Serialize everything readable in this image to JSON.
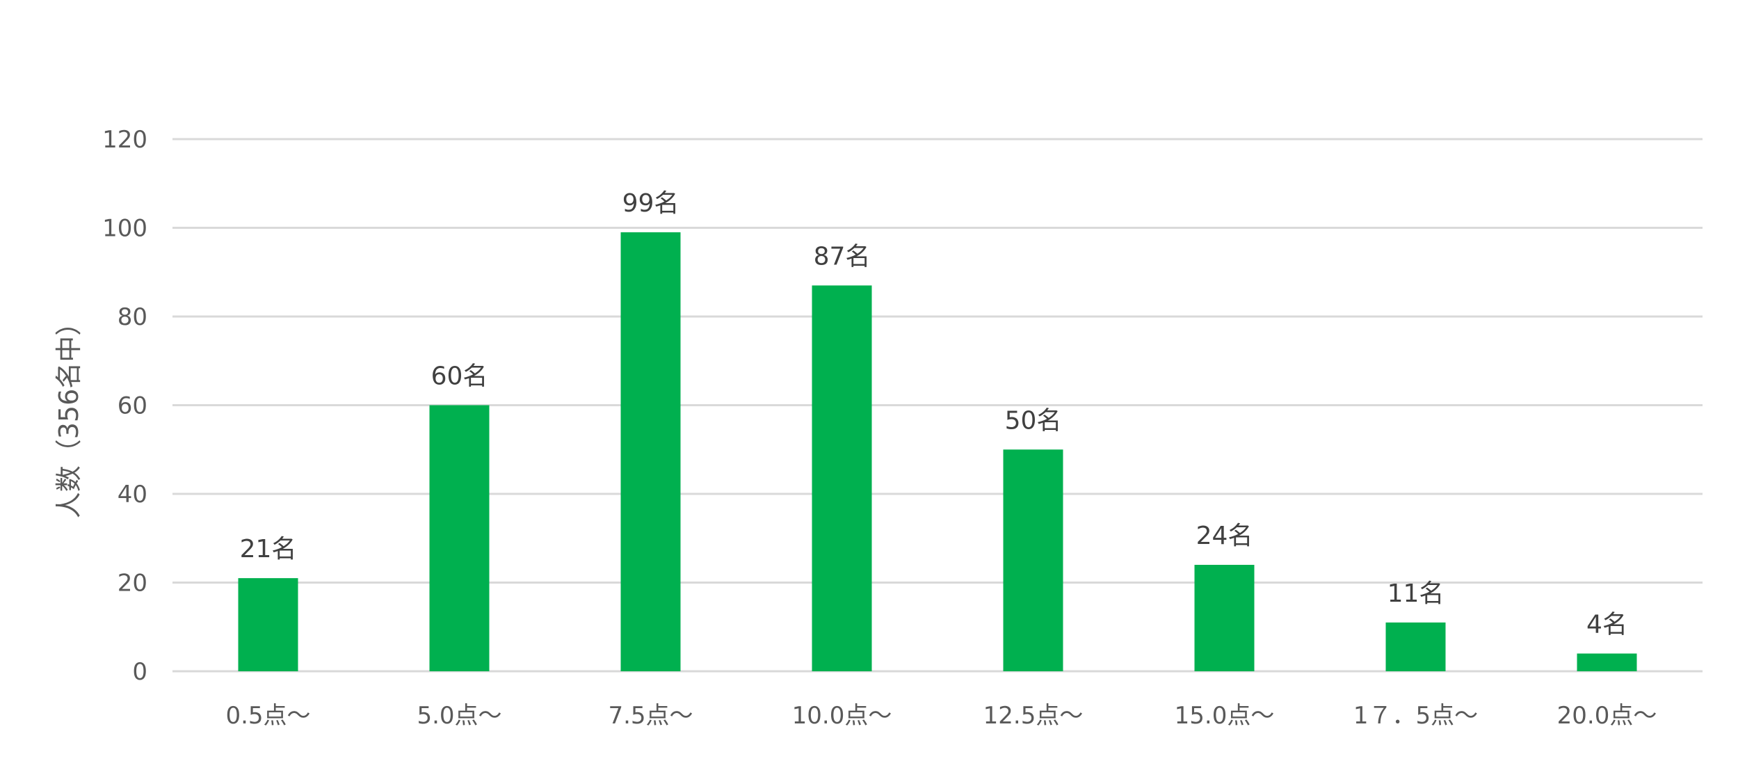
{
  "chart_data": {
    "type": "bar",
    "title": "",
    "xlabel": "",
    "ylabel": "人数（356名中）",
    "categories": [
      "0.5点～",
      "5.0点～",
      "7.5点～",
      "10.0点～",
      "12.5点～",
      "15.0点～",
      "1７．5点～",
      "20.0点～"
    ],
    "values": [
      21,
      60,
      99,
      87,
      50,
      24,
      11,
      4
    ],
    "data_labels": [
      "21名",
      "60名",
      "99名",
      "87名",
      "50名",
      "24名",
      "11名",
      "4名"
    ],
    "ylim": [
      0,
      120
    ],
    "yticks": [
      0,
      20,
      40,
      60,
      80,
      100,
      120
    ],
    "grid": true,
    "legend": "none",
    "bar_color": "#00b04f"
  }
}
